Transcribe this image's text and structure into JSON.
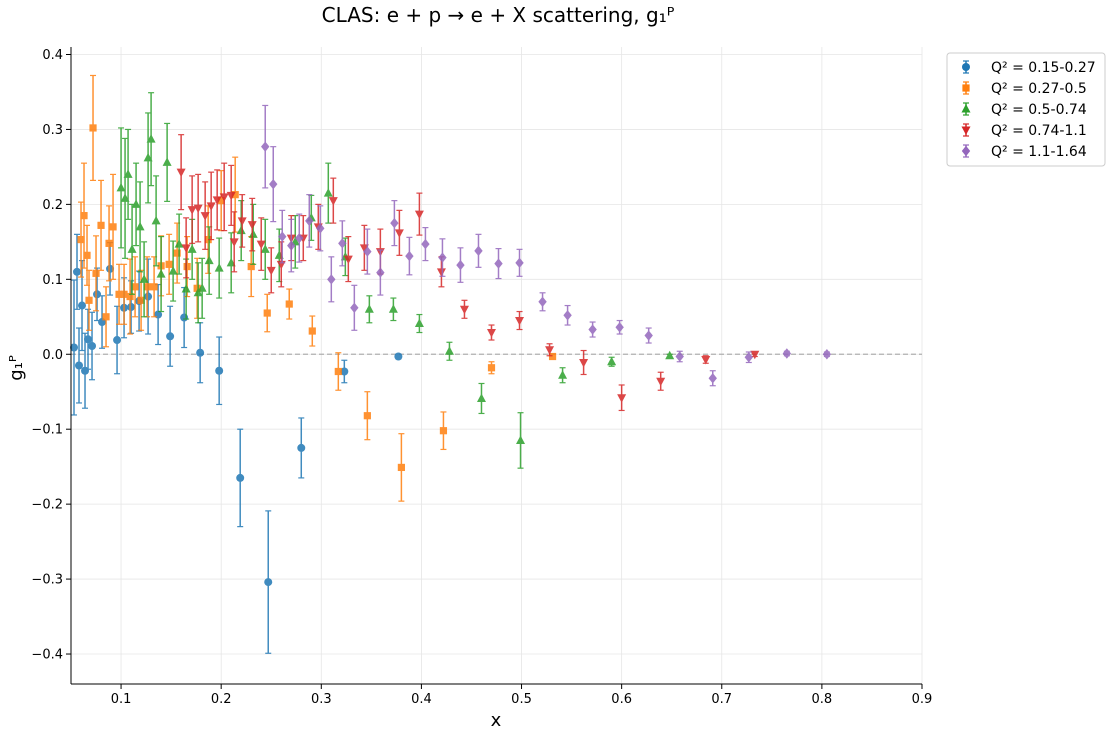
{
  "chart_data": {
    "type": "scatter",
    "title": "CLAS: e + p → e + X scattering, g₁ᴾ",
    "xlabel": "x",
    "ylabel": "g₁ᴾ",
    "xlim": [
      0.05,
      0.9
    ],
    "ylim": [
      -0.44,
      0.41
    ],
    "xticks": [
      0.1,
      0.2,
      0.3,
      0.4,
      0.5,
      0.6,
      0.7,
      0.8,
      0.9
    ],
    "xtick_labels": [
      "0.1",
      "0.2",
      "0.3",
      "0.4",
      "0.5",
      "0.6",
      "0.7",
      "0.8",
      "0.9"
    ],
    "yticks": [
      -0.4,
      -0.3,
      -0.2,
      -0.1,
      0.0,
      0.1,
      0.2,
      0.3,
      0.4
    ],
    "ytick_labels": [
      "−0.4",
      "−0.3",
      "−0.2",
      "−0.1",
      "0.0",
      "0.1",
      "0.2",
      "0.3",
      "0.4"
    ],
    "grid": true,
    "reference_line_y": 0,
    "legend_position": "upper right, outside plot area",
    "series": [
      {
        "name": "Q² = 0.15-0.27",
        "color": "#1f77b4",
        "marker": "circle",
        "points": [
          [
            0.053,
            0.009,
            0.09
          ],
          [
            0.056,
            0.11,
            0.05
          ],
          [
            0.058,
            -0.015,
            0.05
          ],
          [
            0.061,
            0.065,
            0.06
          ],
          [
            0.064,
            -0.022,
            0.05
          ],
          [
            0.067,
            0.02,
            0.04
          ],
          [
            0.071,
            0.011,
            0.045
          ],
          [
            0.076,
            0.08,
            0.035
          ],
          [
            0.081,
            0.043,
            0.035
          ],
          [
            0.089,
            0.114,
            0.035
          ],
          [
            0.096,
            0.019,
            0.045
          ],
          [
            0.103,
            0.062,
            0.04
          ],
          [
            0.11,
            0.063,
            0.035
          ],
          [
            0.118,
            0.071,
            0.04
          ],
          [
            0.127,
            0.077,
            0.05
          ],
          [
            0.137,
            0.053,
            0.04
          ],
          [
            0.149,
            0.024,
            0.04
          ],
          [
            0.163,
            0.049,
            0.04
          ],
          [
            0.179,
            0.002,
            0.04
          ],
          [
            0.198,
            -0.022,
            0.045
          ],
          [
            0.219,
            -0.165,
            0.065
          ],
          [
            0.247,
            -0.304,
            0.095
          ],
          [
            0.28,
            -0.125,
            0.04
          ],
          [
            0.323,
            -0.023,
            0.015
          ],
          [
            0.377,
            -0.003,
            0.003
          ]
        ]
      },
      {
        "name": "Q² = 0.27-0.5",
        "color": "#ff7f0e",
        "marker": "square",
        "points": [
          [
            0.06,
            0.153,
            0.05
          ],
          [
            0.063,
            0.185,
            0.07
          ],
          [
            0.066,
            0.132,
            0.04
          ],
          [
            0.068,
            0.072,
            0.04
          ],
          [
            0.072,
            0.302,
            0.07
          ],
          [
            0.075,
            0.108,
            0.05
          ],
          [
            0.08,
            0.172,
            0.06
          ],
          [
            0.085,
            0.05,
            0.04
          ],
          [
            0.088,
            0.148,
            0.05
          ],
          [
            0.092,
            0.17,
            0.07
          ],
          [
            0.098,
            0.08,
            0.04
          ],
          [
            0.103,
            0.08,
            0.04
          ],
          [
            0.109,
            0.077,
            0.05
          ],
          [
            0.114,
            0.09,
            0.04
          ],
          [
            0.12,
            0.072,
            0.04
          ],
          [
            0.126,
            0.09,
            0.04
          ],
          [
            0.133,
            0.09,
            0.04
          ],
          [
            0.14,
            0.118,
            0.04
          ],
          [
            0.148,
            0.12,
            0.04
          ],
          [
            0.156,
            0.135,
            0.04
          ],
          [
            0.166,
            0.117,
            0.04
          ],
          [
            0.176,
            0.088,
            0.04
          ],
          [
            0.187,
            0.153,
            0.045
          ],
          [
            0.2,
            0.205,
            0.04
          ],
          [
            0.214,
            0.213,
            0.05
          ],
          [
            0.23,
            0.117,
            0.04
          ],
          [
            0.246,
            0.055,
            0.025
          ],
          [
            0.268,
            0.067,
            0.02
          ],
          [
            0.291,
            0.031,
            0.02
          ],
          [
            0.317,
            -0.023,
            0.025
          ],
          [
            0.346,
            -0.082,
            0.032
          ],
          [
            0.38,
            -0.151,
            0.045
          ],
          [
            0.422,
            -0.102,
            0.025
          ],
          [
            0.47,
            -0.018,
            0.008
          ],
          [
            0.531,
            -0.003,
            0.003
          ]
        ]
      },
      {
        "name": "Q² = 0.5-0.74",
        "color": "#2ca02c",
        "marker": "triangle-up",
        "points": [
          [
            0.1,
            0.222,
            0.08
          ],
          [
            0.104,
            0.208,
            0.08
          ],
          [
            0.107,
            0.24,
            0.06
          ],
          [
            0.111,
            0.14,
            0.06
          ],
          [
            0.115,
            0.2,
            0.055
          ],
          [
            0.119,
            0.17,
            0.06
          ],
          [
            0.123,
            0.1,
            0.05
          ],
          [
            0.127,
            0.262,
            0.06
          ],
          [
            0.13,
            0.287,
            0.062
          ],
          [
            0.135,
            0.178,
            0.06
          ],
          [
            0.14,
            0.107,
            0.05
          ],
          [
            0.146,
            0.256,
            0.052
          ],
          [
            0.152,
            0.111,
            0.04
          ],
          [
            0.158,
            0.147,
            0.04
          ],
          [
            0.165,
            0.087,
            0.04
          ],
          [
            0.171,
            0.14,
            0.04
          ],
          [
            0.177,
            0.082,
            0.04
          ],
          [
            0.181,
            0.088,
            0.04
          ],
          [
            0.188,
            0.125,
            0.045
          ],
          [
            0.198,
            0.115,
            0.04
          ],
          [
            0.21,
            0.122,
            0.04
          ],
          [
            0.22,
            0.165,
            0.04
          ],
          [
            0.232,
            0.16,
            0.04
          ],
          [
            0.244,
            0.14,
            0.04
          ],
          [
            0.258,
            0.132,
            0.035
          ],
          [
            0.274,
            0.15,
            0.035
          ],
          [
            0.29,
            0.182,
            0.03
          ],
          [
            0.307,
            0.215,
            0.04
          ],
          [
            0.324,
            0.13,
            0.025
          ],
          [
            0.348,
            0.06,
            0.018
          ],
          [
            0.372,
            0.06,
            0.015
          ],
          [
            0.398,
            0.041,
            0.012
          ],
          [
            0.428,
            0.004,
            0.012
          ],
          [
            0.46,
            -0.059,
            0.02
          ],
          [
            0.499,
            -0.115,
            0.037
          ],
          [
            0.541,
            -0.028,
            0.01
          ],
          [
            0.59,
            -0.01,
            0.006
          ],
          [
            0.648,
            -0.002,
            0.002
          ]
        ]
      },
      {
        "name": "Q² = 0.74-1.1",
        "color": "#d62728",
        "marker": "triangle-down",
        "points": [
          [
            0.16,
            0.243,
            0.05
          ],
          [
            0.165,
            0.142,
            0.04
          ],
          [
            0.171,
            0.193,
            0.045
          ],
          [
            0.177,
            0.195,
            0.045
          ],
          [
            0.184,
            0.185,
            0.045
          ],
          [
            0.19,
            0.198,
            0.045
          ],
          [
            0.196,
            0.206,
            0.04
          ],
          [
            0.203,
            0.21,
            0.045
          ],
          [
            0.21,
            0.212,
            0.04
          ],
          [
            0.213,
            0.15,
            0.04
          ],
          [
            0.221,
            0.178,
            0.035
          ],
          [
            0.231,
            0.173,
            0.035
          ],
          [
            0.24,
            0.147,
            0.035
          ],
          [
            0.25,
            0.112,
            0.03
          ],
          [
            0.26,
            0.12,
            0.03
          ],
          [
            0.27,
            0.155,
            0.03
          ],
          [
            0.282,
            0.155,
            0.03
          ],
          [
            0.297,
            0.17,
            0.03
          ],
          [
            0.312,
            0.205,
            0.03
          ],
          [
            0.327,
            0.127,
            0.03
          ],
          [
            0.343,
            0.142,
            0.03
          ],
          [
            0.359,
            0.137,
            0.03
          ],
          [
            0.378,
            0.162,
            0.03
          ],
          [
            0.398,
            0.187,
            0.028
          ],
          [
            0.42,
            0.11,
            0.02
          ],
          [
            0.443,
            0.06,
            0.012
          ],
          [
            0.47,
            0.029,
            0.01
          ],
          [
            0.498,
            0.045,
            0.012
          ],
          [
            0.528,
            0.006,
            0.008
          ],
          [
            0.562,
            -0.011,
            0.016
          ],
          [
            0.6,
            -0.058,
            0.017
          ],
          [
            0.639,
            -0.036,
            0.012
          ],
          [
            0.684,
            -0.007,
            0.005
          ],
          [
            0.733,
            0.0,
            0.003
          ]
        ]
      },
      {
        "name": "Q² = 1.1-1.64",
        "color": "#9467bd",
        "marker": "diamond",
        "points": [
          [
            0.244,
            0.277,
            0.055
          ],
          [
            0.252,
            0.227,
            0.05
          ],
          [
            0.261,
            0.157,
            0.035
          ],
          [
            0.27,
            0.145,
            0.035
          ],
          [
            0.278,
            0.155,
            0.032
          ],
          [
            0.288,
            0.178,
            0.035
          ],
          [
            0.299,
            0.168,
            0.03
          ],
          [
            0.31,
            0.1,
            0.03
          ],
          [
            0.321,
            0.148,
            0.03
          ],
          [
            0.333,
            0.062,
            0.03
          ],
          [
            0.346,
            0.137,
            0.03
          ],
          [
            0.359,
            0.109,
            0.03
          ],
          [
            0.373,
            0.175,
            0.03
          ],
          [
            0.388,
            0.131,
            0.025
          ],
          [
            0.404,
            0.147,
            0.022
          ],
          [
            0.421,
            0.129,
            0.025
          ],
          [
            0.439,
            0.119,
            0.023
          ],
          [
            0.457,
            0.138,
            0.022
          ],
          [
            0.477,
            0.121,
            0.02
          ],
          [
            0.498,
            0.122,
            0.018
          ],
          [
            0.521,
            0.07,
            0.012
          ],
          [
            0.546,
            0.052,
            0.013
          ],
          [
            0.571,
            0.033,
            0.01
          ],
          [
            0.598,
            0.036,
            0.009
          ],
          [
            0.627,
            0.025,
            0.01
          ],
          [
            0.658,
            -0.003,
            0.007
          ],
          [
            0.691,
            -0.032,
            0.01
          ],
          [
            0.727,
            -0.004,
            0.007
          ],
          [
            0.765,
            0.001,
            0.003
          ],
          [
            0.805,
            0.0,
            0.003
          ]
        ]
      }
    ]
  }
}
